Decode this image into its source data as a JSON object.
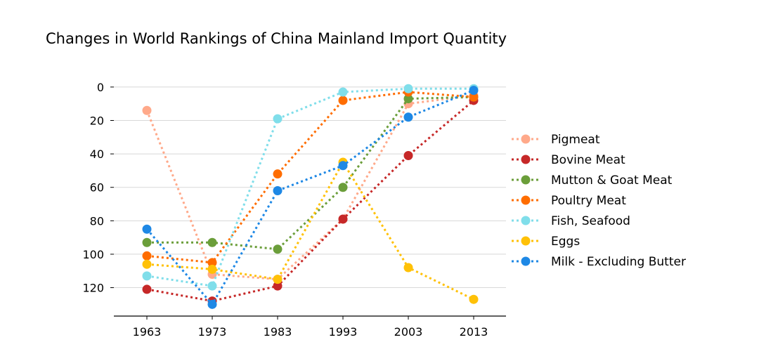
{
  "chart_data": {
    "type": "line",
    "title": "Changes in World Rankings of China Mainland Import Quantity",
    "xlabel": "",
    "ylabel": "",
    "categories": [
      "1963",
      "1973",
      "1983",
      "1993",
      "2003",
      "2013"
    ],
    "y_ticks": [
      "0",
      "20",
      "40",
      "60",
      "80",
      "100",
      "120"
    ],
    "ylim": [
      137,
      -5
    ],
    "y_inverted": true,
    "grid": "horizontal",
    "legend": "right",
    "series": [
      {
        "name": "Pigmeat",
        "color": "#ffa98a",
        "values": [
          14,
          112,
          115,
          79,
          10,
          5
        ]
      },
      {
        "name": "Bovine Meat",
        "color": "#c62828",
        "values": [
          121,
          128,
          119,
          79,
          41,
          8
        ]
      },
      {
        "name": "Mutton & Goat Meat",
        "color": "#6b9e3a",
        "values": [
          93,
          93,
          97,
          60,
          7,
          6
        ]
      },
      {
        "name": "Poultry Meat",
        "color": "#ff6d00",
        "values": [
          101,
          105,
          52,
          8,
          3,
          6
        ]
      },
      {
        "name": "Fish, Seafood",
        "color": "#80deea",
        "values": [
          113,
          119,
          19,
          3,
          1,
          1
        ]
      },
      {
        "name": "Eggs",
        "color": "#ffc107",
        "values": [
          106,
          109,
          115,
          45,
          108,
          127
        ]
      },
      {
        "name": "Milk - Excluding Butter",
        "color": "#1e88e5",
        "values": [
          85,
          130,
          62,
          47,
          18,
          2
        ]
      }
    ]
  }
}
